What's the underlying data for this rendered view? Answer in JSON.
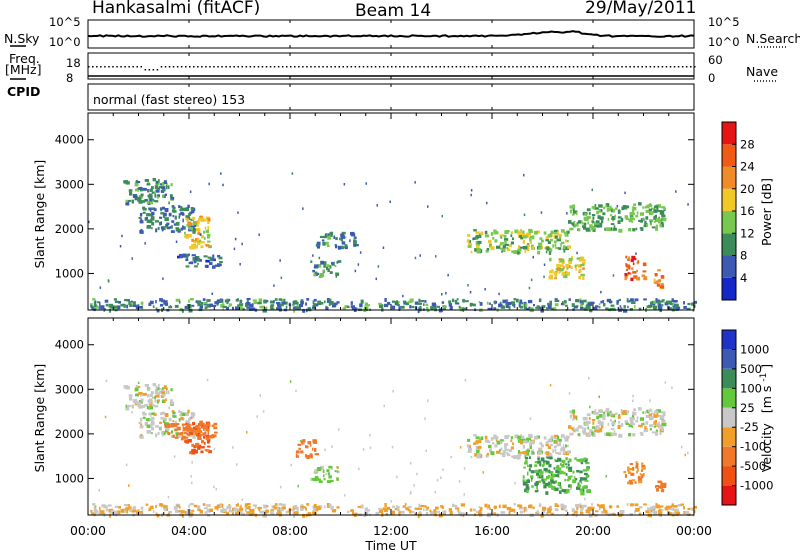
{
  "header": {
    "station": "Hankasalmi (fitACF)",
    "beam": "Beam 14",
    "date": "29/May/2011"
  },
  "top_panels": {
    "nsky_label": "N.Sky",
    "nsky_ticks": [
      "10^5",
      "10^0"
    ],
    "nsearch_label": "N.Search",
    "nsearch_ticks": [
      "10^5",
      "10^0"
    ],
    "freq_label_1": "Freq.",
    "freq_label_2": "[MHz]",
    "freq_ticks": [
      "18",
      "8"
    ],
    "nave_label": "Nave",
    "nave_ticks": [
      "60",
      "0"
    ],
    "cpid_label": "CPID",
    "cpid_text": "normal (fast stereo) 153"
  },
  "x_axis": {
    "ticks": [
      "00:00",
      "04:00",
      "08:00",
      "12:00",
      "16:00",
      "20:00",
      "00:00"
    ],
    "label": "Time UT"
  },
  "y_axis": {
    "label": "Slant Range [km]",
    "ticks": [
      "1000",
      "2000",
      "3000",
      "4000"
    ]
  },
  "power_colorbar": {
    "label": "Power [dB]",
    "ticks": [
      "4",
      "8",
      "12",
      "16",
      "20",
      "24",
      "28"
    ],
    "colors": [
      "#1428c8",
      "#3c5ab4",
      "#3c8c5a",
      "#78c850",
      "#f0c828",
      "#f08c28",
      "#f05a14",
      "#e61414"
    ]
  },
  "velocity_colorbar": {
    "label_main": "Velocity",
    "label_unit": "[m s",
    "label_sup": "-1",
    "label_end": "]",
    "ticks": [
      "1000",
      "500",
      "100",
      "25",
      "-25",
      "-100",
      "-500",
      "-1000"
    ],
    "colors": [
      "#1e32c8",
      "#3c5ab4",
      "#3c8c5a",
      "#64c83c",
      "#c8c8c8",
      "#f0a028",
      "#f07828",
      "#f05014",
      "#e61414"
    ]
  },
  "chart_data": [
    {
      "type": "heatmap",
      "title": "Power",
      "xlabel": "Time UT",
      "ylabel": "Slant Range [km]",
      "x_range_hours": [
        0,
        24
      ],
      "y_range_km": [
        180,
        4600
      ],
      "color_range_db": [
        0,
        30
      ],
      "features": [
        {
          "t0": 1.4,
          "t1": 3.3,
          "r0": 2600,
          "r1": 3150,
          "db": 10
        },
        {
          "t0": 2.0,
          "t1": 4.2,
          "r0": 1950,
          "r1": 2550,
          "db": 8
        },
        {
          "t0": 3.8,
          "t1": 4.8,
          "r0": 1600,
          "r1": 2300,
          "db": 18
        },
        {
          "t0": 3.5,
          "t1": 5.2,
          "r0": 1150,
          "r1": 1450,
          "db": 7
        },
        {
          "t0": 8.8,
          "t1": 9.9,
          "r0": 950,
          "r1": 1300,
          "db": 10
        },
        {
          "t0": 9.0,
          "t1": 10.6,
          "r0": 1600,
          "r1": 1950,
          "db": 9
        },
        {
          "t0": 15.0,
          "t1": 19.0,
          "r0": 1500,
          "r1": 2000,
          "db": 14
        },
        {
          "t0": 19.0,
          "t1": 22.8,
          "r0": 2000,
          "r1": 2600,
          "db": 12
        },
        {
          "t0": 18.2,
          "t1": 19.6,
          "r0": 900,
          "r1": 1400,
          "db": 18
        },
        {
          "t0": 21.2,
          "t1": 22.0,
          "r0": 900,
          "r1": 1400,
          "db": 26
        },
        {
          "t0": 22.4,
          "t1": 22.8,
          "r0": 700,
          "r1": 1100,
          "db": 22
        },
        {
          "t0": 0.0,
          "t1": 24.0,
          "r0": 200,
          "r1": 450,
          "db": 9
        }
      ]
    },
    {
      "type": "heatmap",
      "title": "Velocity",
      "xlabel": "Time UT",
      "ylabel": "Slant Range [km]",
      "x_range_hours": [
        0,
        24
      ],
      "y_range_km": [
        180,
        4600
      ],
      "color_range_mps": [
        -1000,
        1000
      ],
      "features": [
        {
          "t0": 1.4,
          "t1": 3.3,
          "r0": 2600,
          "r1": 3150,
          "v": 0
        },
        {
          "t0": 2.0,
          "t1": 4.2,
          "r0": 1950,
          "r1": 2550,
          "v": 0
        },
        {
          "t0": 3.8,
          "t1": 4.8,
          "r0": 1600,
          "r1": 2300,
          "v": -500
        },
        {
          "t0": 3.0,
          "t1": 5.0,
          "r0": 1900,
          "r1": 2250,
          "v": -300
        },
        {
          "t0": 8.8,
          "t1": 9.9,
          "r0": 950,
          "r1": 1300,
          "v": 60
        },
        {
          "t0": 8.2,
          "t1": 9.0,
          "r0": 1500,
          "r1": 1900,
          "v": -200
        },
        {
          "t0": 15.0,
          "t1": 19.0,
          "r0": 1500,
          "r1": 2000,
          "v": 0
        },
        {
          "t0": 19.0,
          "t1": 22.8,
          "r0": 2000,
          "r1": 2600,
          "v": 0
        },
        {
          "t0": 17.2,
          "t1": 19.8,
          "r0": 700,
          "r1": 1500,
          "v": 100
        },
        {
          "t0": 21.2,
          "t1": 22.0,
          "r0": 900,
          "r1": 1400,
          "v": -100
        },
        {
          "t0": 22.4,
          "t1": 22.8,
          "r0": 700,
          "r1": 1100,
          "v": -200
        },
        {
          "t0": 0.0,
          "t1": 24.0,
          "r0": 200,
          "r1": 450,
          "v": -30
        }
      ]
    }
  ]
}
